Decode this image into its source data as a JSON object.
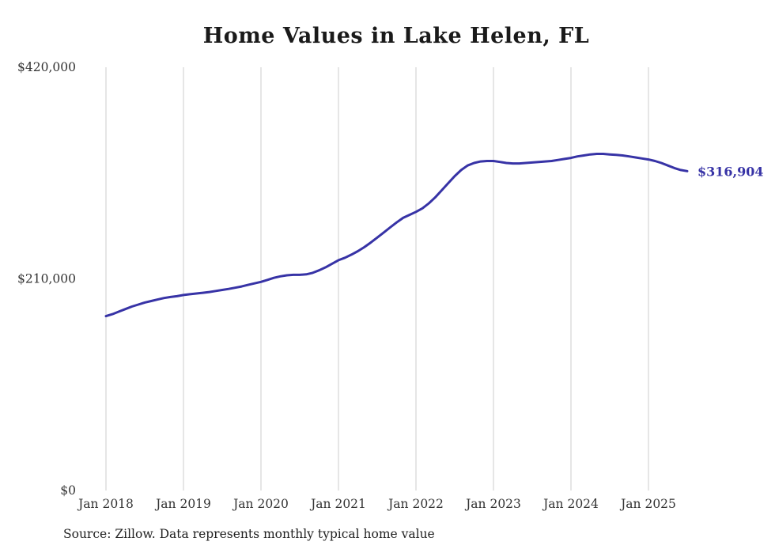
{
  "chart_data": {
    "type": "line",
    "title": "Home Values in Lake Helen, FL",
    "source": "Source: Zillow. Data represents monthly typical home value",
    "series_name": "Typical home value",
    "x_tick_labels": [
      "Jan 2018",
      "Jan 2019",
      "Jan 2020",
      "Jan 2021",
      "Jan 2022",
      "Jan 2023",
      "Jan 2024",
      "Jan 2025"
    ],
    "y_tick_labels": [
      "$0",
      "$210,000",
      "$420,000"
    ],
    "y_ticks": [
      0,
      210000,
      420000
    ],
    "ylim": [
      0,
      420000
    ],
    "end_label": "$316,904",
    "last_value": 316904,
    "line_color": "#3733a6",
    "grid_color": "#cccccc",
    "tick_color": "#333333",
    "grid": "vertical-only",
    "legend": "none",
    "x": [
      "2018-01",
      "2018-02",
      "2018-03",
      "2018-04",
      "2018-05",
      "2018-06",
      "2018-07",
      "2018-08",
      "2018-09",
      "2018-10",
      "2018-11",
      "2018-12",
      "2019-01",
      "2019-02",
      "2019-03",
      "2019-04",
      "2019-05",
      "2019-06",
      "2019-07",
      "2019-08",
      "2019-09",
      "2019-10",
      "2019-11",
      "2019-12",
      "2020-01",
      "2020-02",
      "2020-03",
      "2020-04",
      "2020-05",
      "2020-06",
      "2020-07",
      "2020-08",
      "2020-09",
      "2020-10",
      "2020-11",
      "2020-12",
      "2021-01",
      "2021-02",
      "2021-03",
      "2021-04",
      "2021-05",
      "2021-06",
      "2021-07",
      "2021-08",
      "2021-09",
      "2021-10",
      "2021-11",
      "2021-12",
      "2022-01",
      "2022-02",
      "2022-03",
      "2022-04",
      "2022-05",
      "2022-06",
      "2022-07",
      "2022-08",
      "2022-09",
      "2022-10",
      "2022-11",
      "2022-12",
      "2023-01",
      "2023-02",
      "2023-03",
      "2023-04",
      "2023-05",
      "2023-06",
      "2023-07",
      "2023-08",
      "2023-09",
      "2023-10",
      "2023-11",
      "2023-12",
      "2024-01",
      "2024-02",
      "2024-03",
      "2024-04",
      "2024-05",
      "2024-06",
      "2024-07",
      "2024-08",
      "2024-09",
      "2024-10",
      "2024-11",
      "2024-12",
      "2025-01",
      "2025-02",
      "2025-03",
      "2025-04",
      "2025-05",
      "2025-06",
      "2025-07"
    ],
    "values": [
      173000,
      175000,
      177500,
      180000,
      182500,
      184500,
      186500,
      188000,
      189500,
      191000,
      192000,
      192800,
      194000,
      194800,
      195500,
      196200,
      197000,
      198000,
      199000,
      200000,
      201200,
      202500,
      204000,
      205500,
      207000,
      209000,
      211000,
      212500,
      213500,
      214000,
      214000,
      214500,
      216000,
      218500,
      221500,
      225000,
      228500,
      231000,
      234000,
      237500,
      241500,
      246000,
      251000,
      256000,
      261000,
      266000,
      270500,
      273500,
      276500,
      280000,
      285000,
      291000,
      298000,
      305000,
      312000,
      318000,
      322500,
      325000,
      326500,
      327000,
      327000,
      326000,
      325000,
      324500,
      324500,
      325000,
      325500,
      326000,
      326500,
      327000,
      328000,
      329000,
      330000,
      331500,
      332500,
      333500,
      334000,
      334000,
      333500,
      333000,
      332500,
      331500,
      330500,
      329500,
      328500,
      327000,
      325000,
      322500,
      320000,
      318000,
      316904
    ]
  }
}
